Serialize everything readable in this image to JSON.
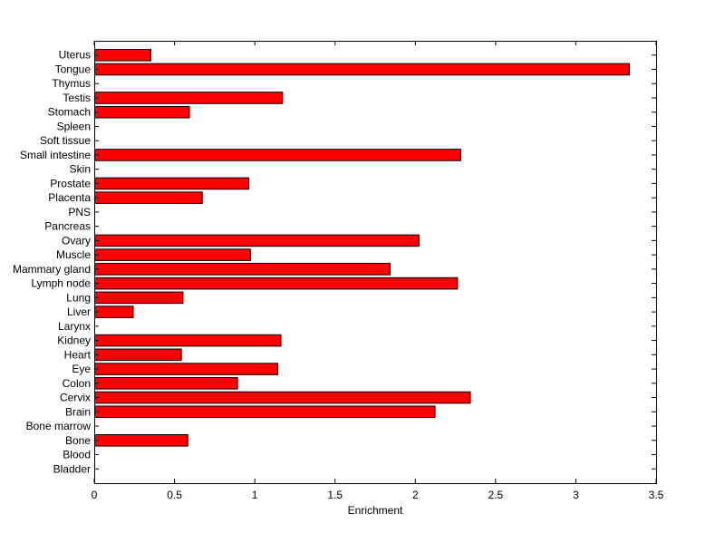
{
  "chart_data": {
    "type": "bar",
    "orientation": "horizontal",
    "title": "",
    "xlabel": "Enrichment",
    "ylabel": "",
    "xlim": [
      0,
      3.5
    ],
    "xticks": [
      0,
      0.5,
      1,
      1.5,
      2,
      2.5,
      3,
      3.5
    ],
    "xtick_labels": [
      "0",
      "0.5",
      "1",
      "1.5",
      "2",
      "2.5",
      "3",
      "3.5"
    ],
    "grid": false,
    "bar_color": "#ff0000",
    "categories": [
      "Bladder",
      "Blood",
      "Bone",
      "Bone marrow",
      "Brain",
      "Cervix",
      "Colon",
      "Eye",
      "Heart",
      "Kidney",
      "Larynx",
      "Liver",
      "Lung",
      "Lymph node",
      "Mammary gland",
      "Muscle",
      "Ovary",
      "Pancreas",
      "PNS",
      "Placenta",
      "Prostate",
      "Skin",
      "Small intestine",
      "Soft tissue",
      "Spleen",
      "Stomach",
      "Testis",
      "Thymus",
      "Tongue",
      "Uterus"
    ],
    "values": [
      0,
      0,
      0.58,
      0,
      2.12,
      2.34,
      0.89,
      1.14,
      0.54,
      1.16,
      0,
      0.24,
      0.55,
      2.26,
      1.84,
      0.97,
      2.02,
      0,
      0,
      0.67,
      0.96,
      0,
      2.28,
      0,
      0,
      0.59,
      1.17,
      0,
      3.33,
      0.35
    ]
  }
}
